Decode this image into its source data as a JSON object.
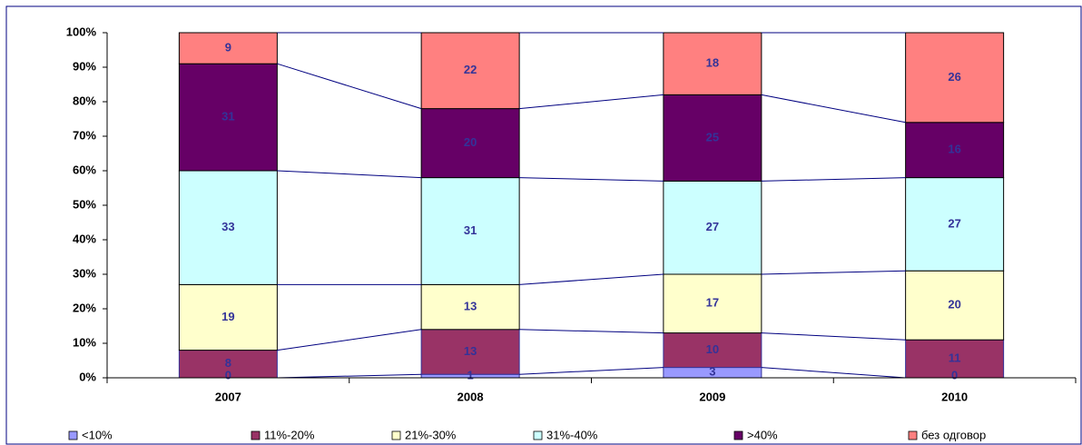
{
  "chart_data": {
    "type": "stacked_bar_100",
    "categories": [
      "2007",
      "2008",
      "2009",
      "2010"
    ],
    "series": [
      {
        "name": "<10%",
        "color": "#9999ff",
        "values": [
          0,
          1,
          3,
          0
        ]
      },
      {
        "name": "11%-20%",
        "color": "#993366",
        "values": [
          8,
          13,
          10,
          11
        ]
      },
      {
        "name": "21%-30%",
        "color": "#ffffcc",
        "values": [
          19,
          13,
          17,
          20
        ]
      },
      {
        "name": "31%-40%",
        "color": "#ccffff",
        "values": [
          33,
          31,
          27,
          27
        ]
      },
      {
        "name": ">40%",
        "color": "#660066",
        "values": [
          31,
          20,
          25,
          16
        ]
      },
      {
        "name": "без одговор",
        "color": "#ff8080",
        "values": [
          9,
          22,
          18,
          26
        ]
      }
    ],
    "ylim": [
      0,
      100
    ],
    "yticks": [
      {
        "value": 0,
        "label": "0%"
      },
      {
        "value": 10,
        "label": "10%"
      },
      {
        "value": 20,
        "label": "20%"
      },
      {
        "value": 30,
        "label": "30%"
      },
      {
        "value": 40,
        "label": "40%"
      },
      {
        "value": 50,
        "label": "50%"
      },
      {
        "value": 60,
        "label": "60%"
      },
      {
        "value": 70,
        "label": "70%"
      },
      {
        "value": 80,
        "label": "80%"
      },
      {
        "value": 90,
        "label": "90%"
      },
      {
        "value": 100,
        "label": "100%"
      }
    ],
    "legend": "bottom"
  }
}
